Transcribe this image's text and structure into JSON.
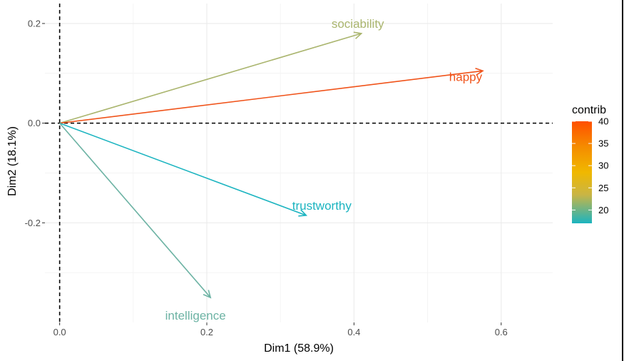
{
  "chart_data": {
    "type": "pca-variable-arrows",
    "xlabel": "Dim1 (58.9%)",
    "ylabel": "Dim2 (18.1%)",
    "xlim": [
      -0.02,
      0.67
    ],
    "ylim": [
      -0.4,
      0.24
    ],
    "x_ticks": [
      0.0,
      0.2,
      0.4,
      0.6
    ],
    "x_tick_labels": [
      "0.0",
      "0.2",
      "0.4",
      "0.6"
    ],
    "y_ticks": [
      0.2,
      0.0,
      -0.2
    ],
    "y_tick_labels": [
      "0.2",
      "0.0",
      "-0.2"
    ],
    "grid": true,
    "reference_lines": {
      "x": 0,
      "y": 0,
      "style": "dashed"
    },
    "variables": [
      {
        "name": "sociability",
        "x": 0.41,
        "y": 0.18,
        "contrib": 24,
        "color": "#aab56e"
      },
      {
        "name": "happy",
        "x": 0.575,
        "y": 0.105,
        "contrib": 40,
        "color": "#f0531a"
      },
      {
        "name": "trustworthy",
        "x": 0.335,
        "y": -0.185,
        "contrib": 17,
        "color": "#1bb4c0"
      },
      {
        "name": "intelligence",
        "x": 0.205,
        "y": -0.35,
        "contrib": 20,
        "color": "#6db3a4"
      }
    ],
    "legend": {
      "title": "contrib",
      "position": "right",
      "ticks": [
        40,
        35,
        30,
        25,
        20
      ],
      "tick_labels": [
        "40",
        "35",
        "30",
        "25",
        "20"
      ],
      "range": [
        17,
        40
      ],
      "colors": [
        "#ff4f00",
        "#f0b800",
        "#1bb4c0"
      ]
    }
  }
}
